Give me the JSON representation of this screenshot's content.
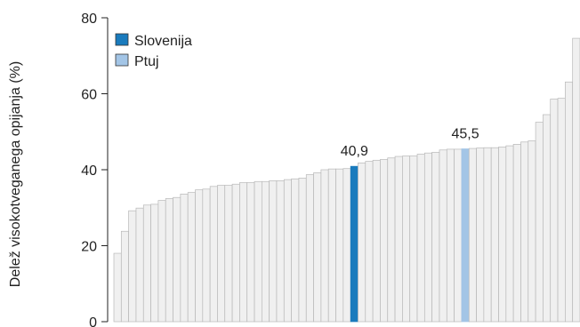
{
  "chart_data": {
    "type": "bar",
    "ylabel": "Delež visokotveganega opijanja (%)",
    "ylim": [
      0,
      80
    ],
    "y_ticks": [
      0,
      20,
      40,
      60,
      80
    ],
    "grid": false,
    "legend_position": "top-left",
    "legend": [
      {
        "name": "Slovenija",
        "color": "#1a7bbd"
      },
      {
        "name": "Ptuj",
        "color": "#a3c5e6"
      }
    ],
    "colors": {
      "default": "#f0f0f0",
      "default_stroke": "#b8b8b8",
      "Slovenija": "#1a7bbd",
      "Ptuj": "#a3c5e6"
    },
    "values": [
      18.0,
      23.8,
      29.2,
      29.9,
      30.7,
      30.9,
      31.9,
      32.4,
      32.7,
      33.6,
      34.0,
      34.7,
      34.9,
      35.6,
      35.9,
      35.9,
      36.2,
      36.6,
      36.6,
      36.9,
      36.9,
      37.1,
      37.1,
      37.4,
      37.6,
      37.8,
      38.7,
      39.2,
      40.0,
      40.2,
      40.2,
      40.3,
      40.9,
      41.8,
      42.2,
      42.5,
      42.7,
      43.1,
      43.5,
      43.6,
      43.6,
      44.1,
      44.4,
      44.6,
      45.2,
      45.4,
      45.4,
      45.5,
      45.6,
      45.7,
      45.8,
      45.8,
      46.0,
      46.3,
      46.7,
      47.3,
      47.6,
      52.5,
      54.5,
      58.6,
      58.8,
      63.1,
      74.6
    ],
    "highlight": [
      {
        "index": 32,
        "series": "Slovenija",
        "label": "40,9"
      },
      {
        "index": 47,
        "series": "Ptuj",
        "label": "45,5"
      }
    ]
  }
}
